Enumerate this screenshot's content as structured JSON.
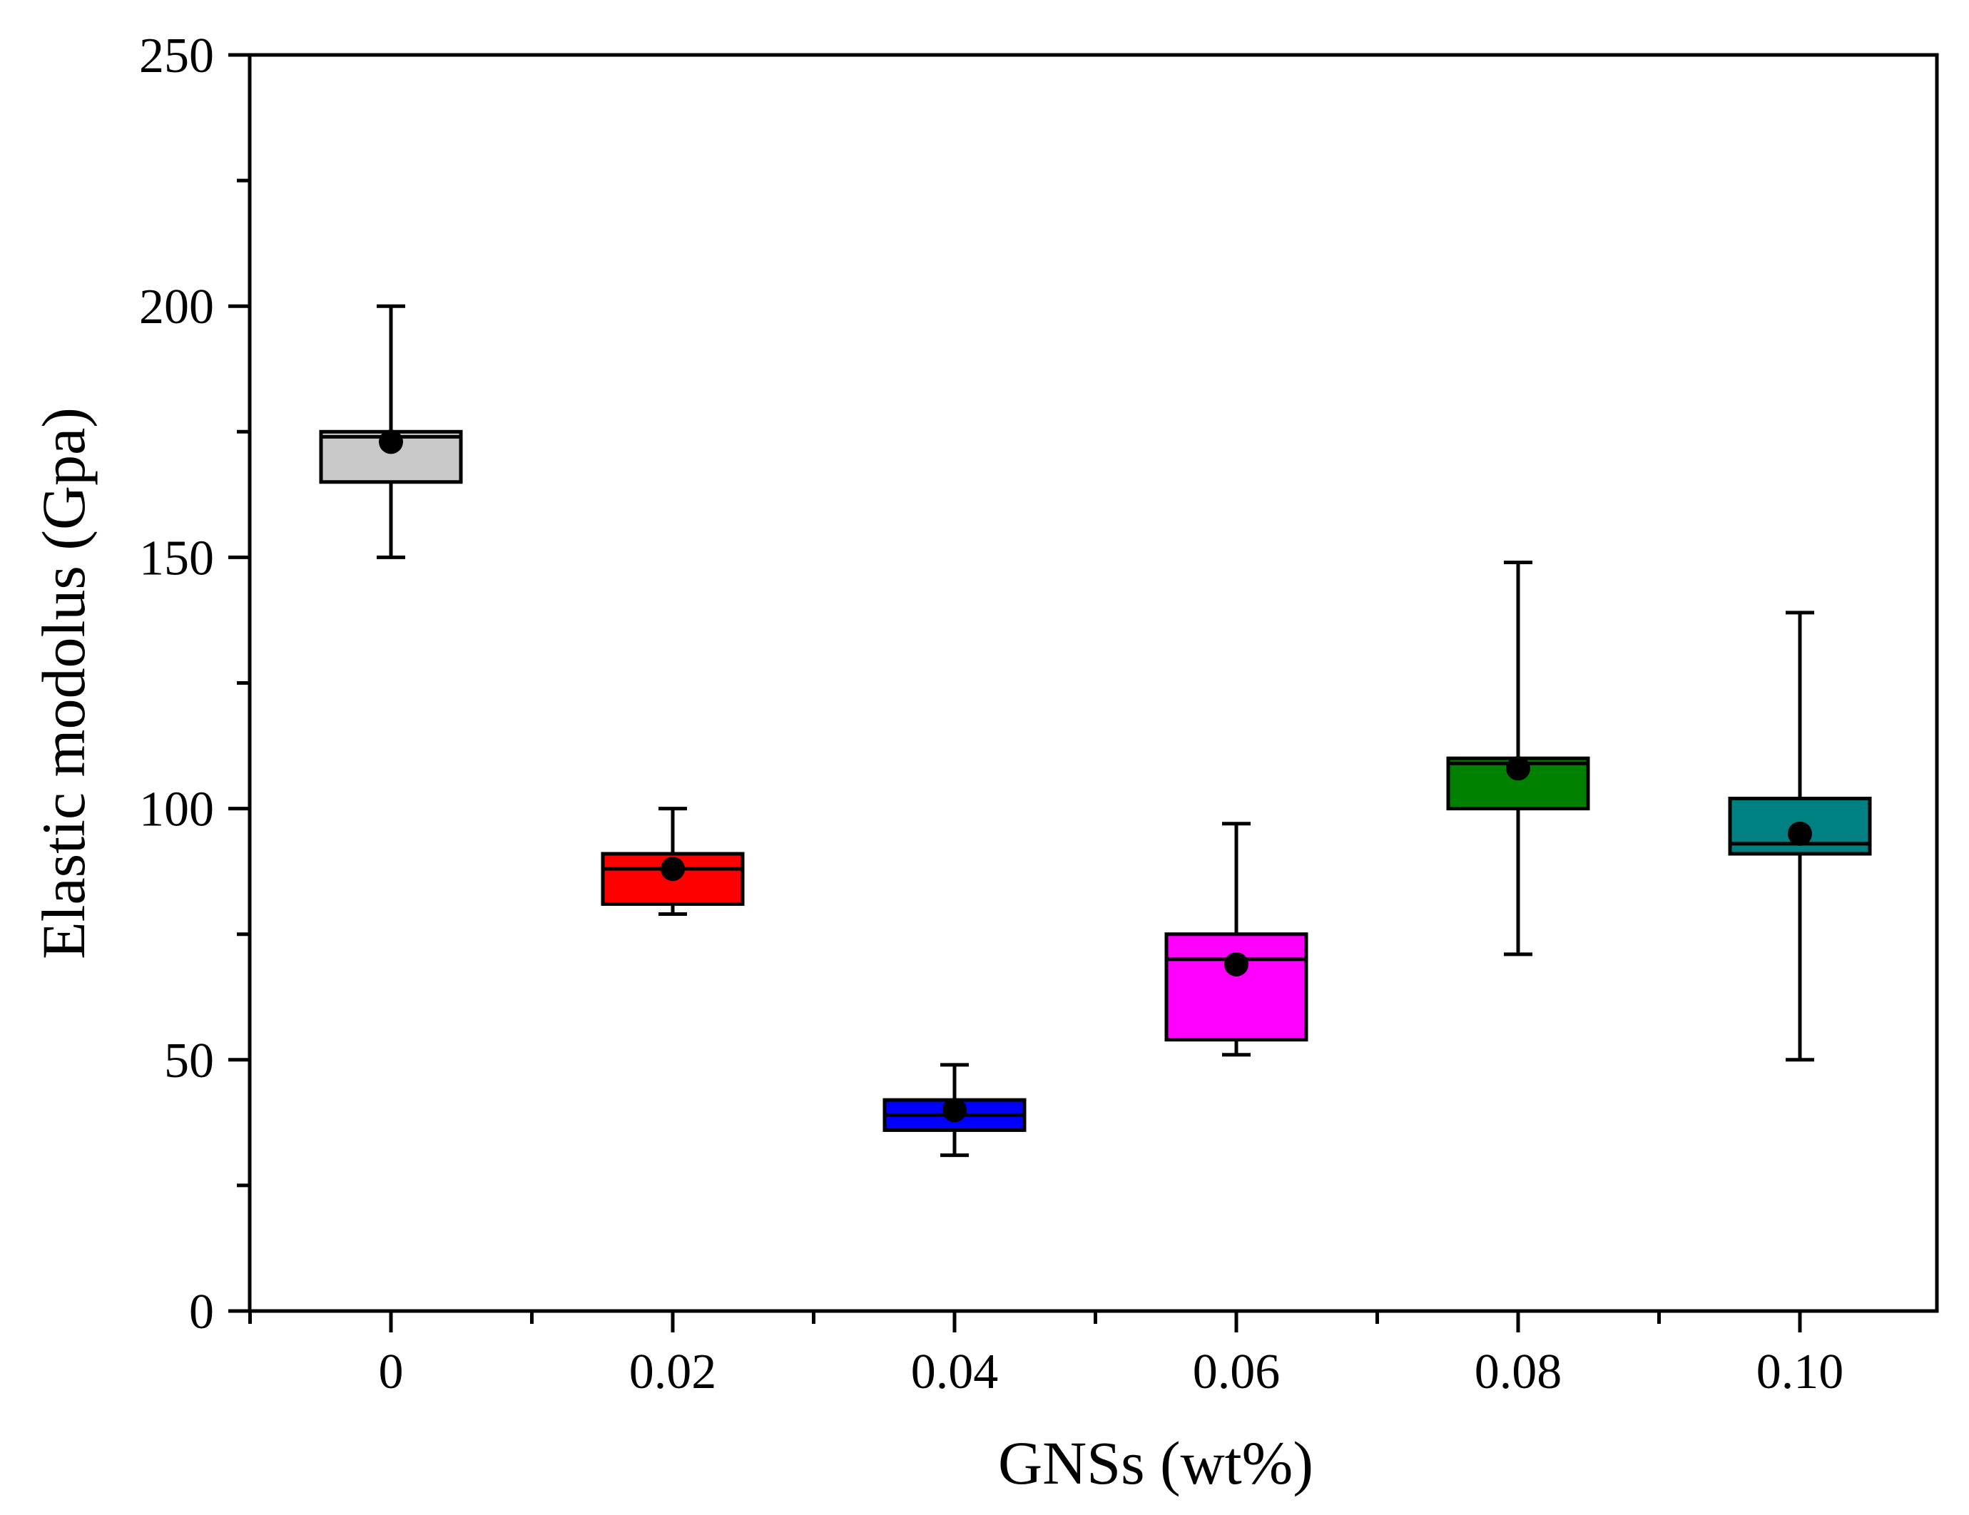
{
  "chart_data": {
    "type": "box",
    "title": "",
    "xlabel": "GNSs (wt%)",
    "ylabel": "Elastic modolus (Gpa)",
    "ylim": [
      0,
      250
    ],
    "yticks": [
      0,
      50,
      100,
      150,
      200,
      250
    ],
    "y_minor_step": 25,
    "grid": false,
    "legend": "none",
    "categories": [
      "0",
      "0.02",
      "0.04",
      "0.06",
      "0.08",
      "0.10"
    ],
    "boxes": [
      {
        "category": "0",
        "whisker_low": 150,
        "q1": 165,
        "median": 174,
        "q3": 175,
        "whisker_high": 200,
        "mean": 173,
        "color": "#c8c8c8"
      },
      {
        "category": "0.02",
        "whisker_low": 79,
        "q1": 81,
        "median": 88,
        "q3": 91,
        "whisker_high": 100,
        "mean": 88,
        "color": "#ff0000"
      },
      {
        "category": "0.04",
        "whisker_low": 31,
        "q1": 36,
        "median": 39,
        "q3": 42,
        "whisker_high": 49,
        "mean": 40,
        "color": "#0000ff"
      },
      {
        "category": "0.06",
        "whisker_low": 51,
        "q1": 54,
        "median": 70,
        "q3": 75,
        "whisker_high": 97,
        "mean": 69,
        "color": "#ff00ff"
      },
      {
        "category": "0.08",
        "whisker_low": 71,
        "q1": 100,
        "median": 109,
        "q3": 110,
        "whisker_high": 149,
        "mean": 108,
        "color": "#008000"
      },
      {
        "category": "0.10",
        "whisker_low": 50,
        "q1": 91,
        "median": 93,
        "q3": 102,
        "whisker_high": 139,
        "mean": 95,
        "color": "#008080"
      }
    ]
  }
}
